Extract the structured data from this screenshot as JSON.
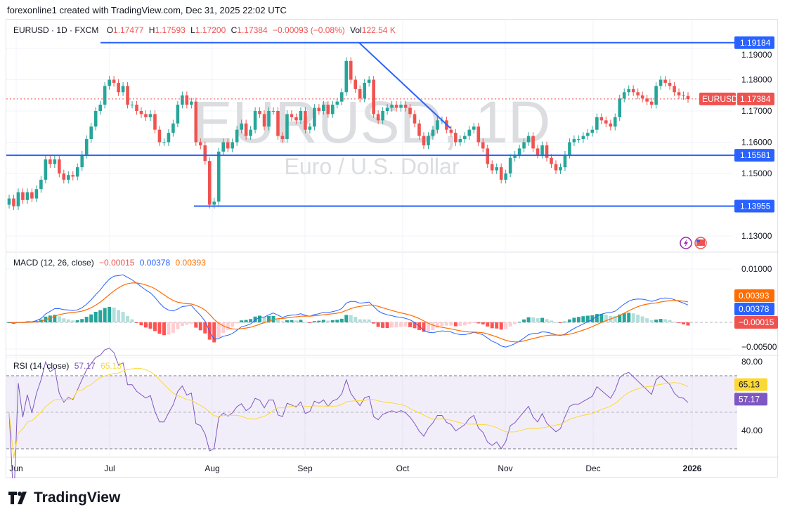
{
  "credit": "forexonline1 created with TradingView.com, Dec 31, 2025 22:02 UTC",
  "header": {
    "symbol": "EURUSD · 1D · FXCM",
    "o_label": "O",
    "o": "1.17477",
    "h_label": "H",
    "h": "1.17593",
    "l_label": "L",
    "l": "1.17200",
    "c_label": "C",
    "c": "1.17384",
    "change": "−0.00093 (−0.08%)",
    "vol_label": "Vol",
    "vol": "122.54 K"
  },
  "watermark": {
    "symbol": "EURUSD, 1D",
    "description": "Euro / U.S. Dollar"
  },
  "macd_legend": {
    "label": "MACD (12, 26, close)",
    "hist": "−0.00015",
    "macd": "0.00378",
    "signal": "0.00393"
  },
  "rsi_legend": {
    "label": "RSI (14, close)",
    "rsi": "57.17",
    "ma": "65.13"
  },
  "footer": {
    "brand": "TradingView"
  },
  "colors": {
    "up": "#26a69a",
    "down": "#ef5350",
    "line": "#2962ff",
    "macd": "#2962ff",
    "signal": "#ff6d00",
    "rsi": "#7e57c2",
    "rsi_ma": "#fdd835"
  },
  "chart_data": [
    {
      "type": "candlestick",
      "title": "EURUSD · 1D · FXCM",
      "ylim": [
        1.125,
        1.197
      ],
      "price_ticks": [
        "1.13000",
        "1.15000",
        "1.16000",
        "1.17000",
        "1.18000",
        "1.19000"
      ],
      "x_ticks": [
        "Jun",
        "Jul",
        "Aug",
        "Sep",
        "Oct",
        "Nov",
        "Dec",
        "2026"
      ],
      "last_price_label": "EURUSD",
      "last_price": "1.17384",
      "horizontal_lines": [
        {
          "value": 1.19184,
          "label": "1.19184"
        },
        {
          "value": 1.15581,
          "label": "1.15581"
        },
        {
          "value": 1.13955,
          "label": "1.13955"
        }
      ],
      "trend_line": {
        "from": 1.19184,
        "to": 1.1645
      },
      "closes": [
        1.142,
        1.1395,
        1.144,
        1.1415,
        1.144,
        1.142,
        1.145,
        1.148,
        1.1545,
        1.153,
        1.1545,
        1.15,
        1.148,
        1.1495,
        1.149,
        1.152,
        1.156,
        1.161,
        1.165,
        1.17,
        1.172,
        1.178,
        1.18,
        1.179,
        1.176,
        1.178,
        1.172,
        1.172,
        1.17,
        1.169,
        1.168,
        1.169,
        1.164,
        1.16,
        1.16,
        1.163,
        1.166,
        1.172,
        1.175,
        1.172,
        1.173,
        1.16,
        1.159,
        1.154,
        1.14,
        1.141,
        1.157,
        1.16,
        1.158,
        1.16,
        1.164,
        1.166,
        1.162,
        1.164,
        1.17,
        1.169,
        1.165,
        1.17,
        1.17,
        1.162,
        1.161,
        1.169,
        1.168,
        1.167,
        1.17,
        1.164,
        1.165,
        1.171,
        1.17,
        1.172,
        1.169,
        1.172,
        1.173,
        1.176,
        1.186,
        1.18,
        1.177,
        1.174,
        1.179,
        1.18,
        1.169,
        1.167,
        1.17,
        1.171,
        1.172,
        1.171,
        1.172,
        1.171,
        1.169,
        1.166,
        1.162,
        1.159,
        1.162,
        1.164,
        1.167,
        1.167,
        1.164,
        1.163,
        1.16,
        1.161,
        1.162,
        1.164,
        1.165,
        1.16,
        1.158,
        1.153,
        1.151,
        1.152,
        1.148,
        1.15,
        1.155,
        1.156,
        1.158,
        1.16,
        1.162,
        1.158,
        1.156,
        1.159,
        1.155,
        1.153,
        1.151,
        1.152,
        1.156,
        1.16,
        1.161,
        1.161,
        1.162,
        1.163,
        1.164,
        1.168,
        1.167,
        1.166,
        1.165,
        1.168,
        1.174,
        1.176,
        1.177,
        1.176,
        1.175,
        1.174,
        1.173,
        1.172,
        1.178,
        1.18,
        1.179,
        1.178,
        1.176,
        1.175,
        1.1748,
        1.1738
      ]
    },
    {
      "type": "macd",
      "title": "MACD (12, 26, close)",
      "ylim": [
        -0.006,
        0.0115
      ],
      "ticks": [
        "0.01000",
        "−0.00500"
      ],
      "last": {
        "hist": "−0.00015",
        "macd": "0.00378",
        "signal": "0.00393"
      }
    },
    {
      "type": "rsi",
      "title": "RSI (14, close)",
      "ylim": [
        28,
        81
      ],
      "ticks": [
        "80.00",
        "40.00"
      ],
      "band": [
        30,
        70
      ],
      "last": {
        "rsi": "57.17",
        "ma": "65.13"
      }
    }
  ]
}
